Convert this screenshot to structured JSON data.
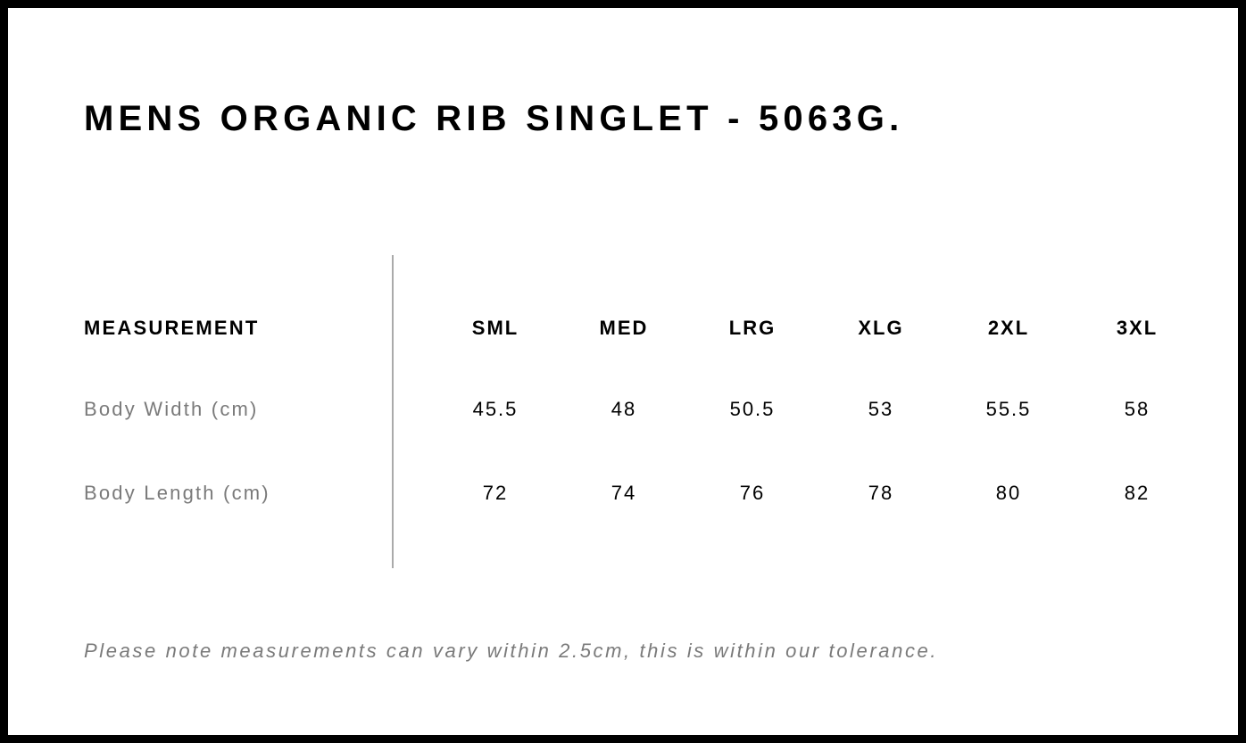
{
  "title": "MENS ORGANIC RIB SINGLET - 5063G.",
  "table": {
    "header_label": "MEASUREMENT",
    "sizes": [
      "SML",
      "MED",
      "LRG",
      "XLG",
      "2XL",
      "3XL"
    ],
    "rows": [
      {
        "label": "Body Width (cm)",
        "values": [
          "45.5",
          "48",
          "50.5",
          "53",
          "55.5",
          "58"
        ]
      },
      {
        "label": "Body Length (cm)",
        "values": [
          "72",
          "74",
          "76",
          "78",
          "80",
          "82"
        ]
      }
    ]
  },
  "note": "Please note measurements can vary within 2.5cm, this is within our tolerance."
}
